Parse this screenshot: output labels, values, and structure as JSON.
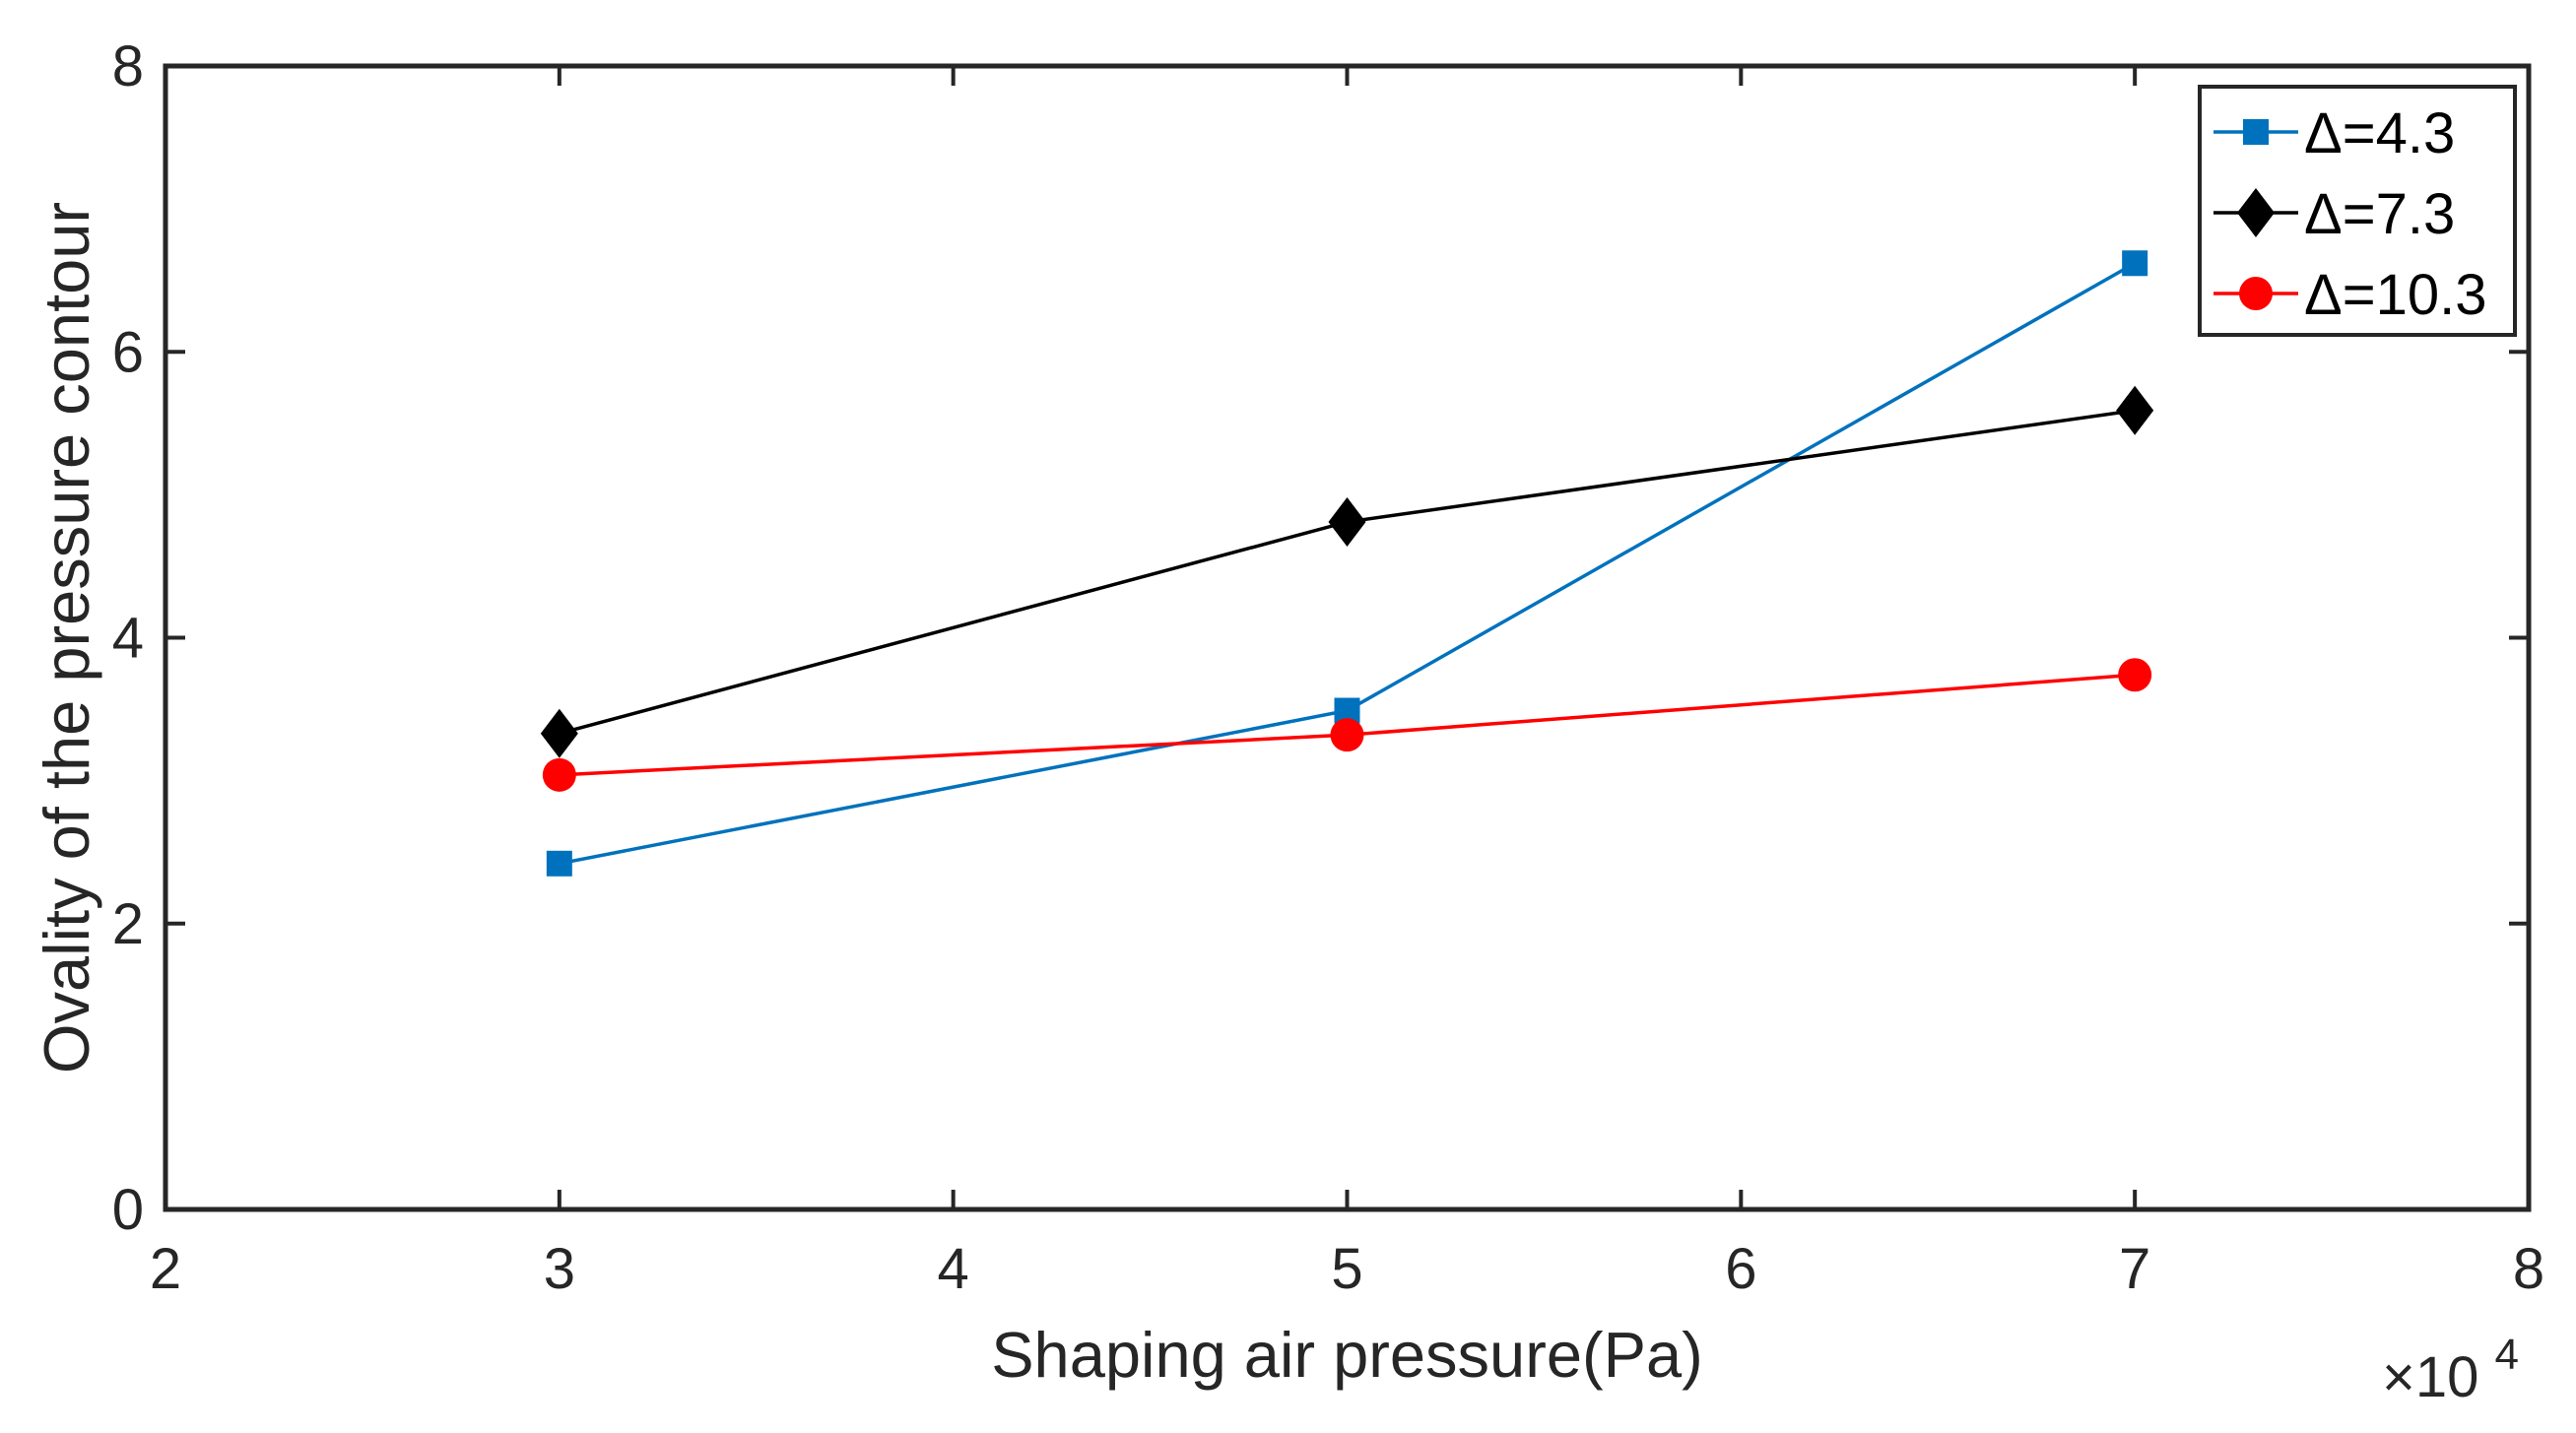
{
  "chart_data": {
    "type": "line",
    "title": "",
    "xlabel": "Shaping air pressure(Pa)",
    "ylabel": "Ovality of the pressure contour",
    "x_multiplier_text": "×10",
    "x_multiplier_exponent": "4",
    "xlim": [
      2,
      8
    ],
    "ylim": [
      0,
      8
    ],
    "xticks": [
      2,
      3,
      4,
      5,
      6,
      7,
      8
    ],
    "xtick_labels": [
      "2",
      "3",
      "4",
      "5",
      "6",
      "7",
      "8"
    ],
    "yticks": [
      0,
      2,
      4,
      6,
      8
    ],
    "ytick_labels": [
      "0",
      "2",
      "4",
      "6",
      "8"
    ],
    "grid": false,
    "legend_position": "top-right",
    "series": [
      {
        "name": "Δ=4.3",
        "color": "#0072BD",
        "marker": "square",
        "x": [
          3,
          5,
          7
        ],
        "y": [
          2.42,
          3.49,
          6.62
        ]
      },
      {
        "name": "Δ=7.3",
        "color": "#000000",
        "marker": "diamond",
        "x": [
          3,
          5,
          7
        ],
        "y": [
          3.33,
          4.81,
          5.59
        ]
      },
      {
        "name": "Δ=10.3",
        "color": "#FF0000",
        "marker": "circle",
        "x": [
          3,
          5,
          7
        ],
        "y": [
          3.04,
          3.32,
          3.74
        ]
      }
    ]
  }
}
